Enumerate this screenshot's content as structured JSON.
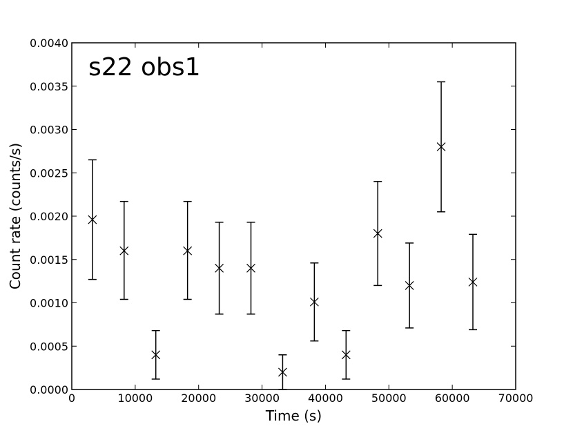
{
  "chart_data": {
    "type": "scatter",
    "annotation": "s22 obs1",
    "xlabel": "Time (s)",
    "ylabel": "Count rate (counts/s)",
    "xlim": [
      0,
      70000
    ],
    "ylim": [
      0,
      0.004
    ],
    "xticks": [
      "0",
      "10000",
      "20000",
      "30000",
      "40000",
      "50000",
      "60000",
      "70000"
    ],
    "yticks": [
      "0.0000",
      "0.0005",
      "0.0010",
      "0.0015",
      "0.0020",
      "0.0025",
      "0.0030",
      "0.0035",
      "0.0040"
    ],
    "grid": false,
    "marker": "x",
    "color": "#000000",
    "points": [
      {
        "x": 3250,
        "y": 0.00196,
        "ylow": 0.00127,
        "yhigh": 0.00265
      },
      {
        "x": 8250,
        "y": 0.0016,
        "ylow": 0.00104,
        "yhigh": 0.00217
      },
      {
        "x": 13250,
        "y": 0.0004,
        "ylow": 0.00012,
        "yhigh": 0.00068
      },
      {
        "x": 18250,
        "y": 0.0016,
        "ylow": 0.00104,
        "yhigh": 0.00217
      },
      {
        "x": 23250,
        "y": 0.0014,
        "ylow": 0.00087,
        "yhigh": 0.00193
      },
      {
        "x": 28250,
        "y": 0.0014,
        "ylow": 0.00087,
        "yhigh": 0.00193
      },
      {
        "x": 33250,
        "y": 0.0002,
        "ylow": 0.0,
        "yhigh": 0.0004
      },
      {
        "x": 38250,
        "y": 0.00101,
        "ylow": 0.00056,
        "yhigh": 0.00146
      },
      {
        "x": 43250,
        "y": 0.0004,
        "ylow": 0.00012,
        "yhigh": 0.00068
      },
      {
        "x": 48250,
        "y": 0.0018,
        "ylow": 0.0012,
        "yhigh": 0.0024
      },
      {
        "x": 53250,
        "y": 0.0012,
        "ylow": 0.00071,
        "yhigh": 0.00169
      },
      {
        "x": 58250,
        "y": 0.0028,
        "ylow": 0.00205,
        "yhigh": 0.00355
      },
      {
        "x": 63250,
        "y": 0.00124,
        "ylow": 0.00069,
        "yhigh": 0.00179
      }
    ]
  }
}
